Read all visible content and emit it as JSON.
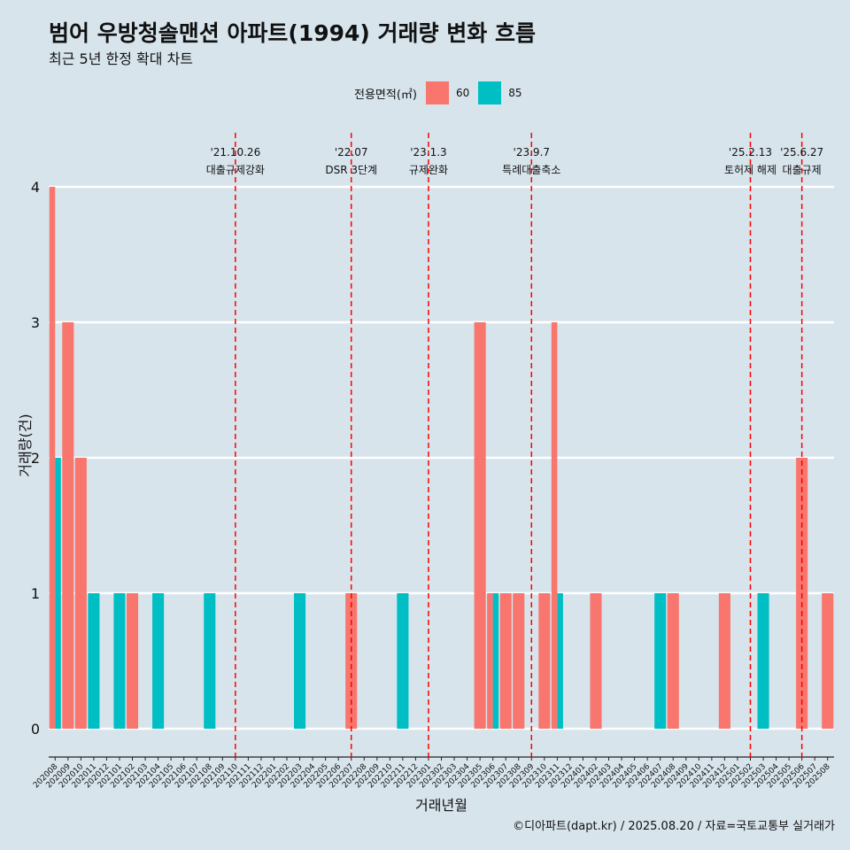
{
  "title": "범어 우방청솔맨션 아파트(1994) 거래량 변화 흐름",
  "subtitle": "최근 5년 한정 확대 차트",
  "credit": "©디아파트(dapt.kr) / 2025.08.20 / 자료=국토교통부 실거래가",
  "legend": {
    "title": "전용면적(㎡)",
    "items": [
      {
        "label": "60",
        "color": "#f8766d"
      },
      {
        "label": "85",
        "color": "#00bfc4"
      }
    ]
  },
  "chart_data": {
    "type": "bar",
    "xlabel": "거래년월",
    "ylabel": "거래량(건)",
    "ylim": [
      0,
      4
    ],
    "yticks": [
      0,
      1,
      2,
      3,
      4
    ],
    "categories": [
      "202008",
      "202009",
      "202010",
      "202011",
      "202012",
      "202101",
      "202102",
      "202103",
      "202104",
      "202105",
      "202106",
      "202107",
      "202108",
      "202109",
      "202110",
      "202111",
      "202112",
      "202201",
      "202202",
      "202203",
      "202204",
      "202205",
      "202206",
      "202207",
      "202208",
      "202209",
      "202210",
      "202211",
      "202212",
      "202301",
      "202302",
      "202303",
      "202304",
      "202305",
      "202306",
      "202307",
      "202308",
      "202309",
      "202310",
      "202311",
      "202312",
      "202401",
      "202402",
      "202403",
      "202404",
      "202405",
      "202406",
      "202407",
      "202408",
      "202409",
      "202410",
      "202411",
      "202412",
      "202501",
      "202502",
      "202503",
      "202504",
      "202505",
      "202506",
      "202507",
      "202508"
    ],
    "series": [
      {
        "name": "60",
        "color": "#f8766d",
        "values": [
          4,
          3,
          2,
          0,
          0,
          0,
          1,
          0,
          0,
          0,
          0,
          0,
          0,
          0,
          0,
          0,
          0,
          0,
          0,
          0,
          0,
          0,
          0,
          1,
          0,
          0,
          0,
          0,
          0,
          0,
          0,
          0,
          0,
          3,
          1,
          1,
          1,
          0,
          1,
          3,
          0,
          0,
          1,
          0,
          0,
          0,
          0,
          0,
          1,
          0,
          0,
          0,
          1,
          0,
          0,
          0,
          0,
          0,
          2,
          0,
          1
        ]
      },
      {
        "name": "85",
        "color": "#00bfc4",
        "values": [
          2,
          0,
          0,
          1,
          0,
          1,
          0,
          0,
          1,
          0,
          0,
          0,
          1,
          0,
          0,
          0,
          0,
          0,
          0,
          1,
          0,
          0,
          0,
          0,
          0,
          0,
          0,
          1,
          0,
          0,
          0,
          0,
          0,
          0,
          1,
          0,
          0,
          0,
          0,
          1,
          0,
          0,
          0,
          0,
          0,
          0,
          0,
          1,
          0,
          0,
          0,
          0,
          0,
          0,
          0,
          1,
          0,
          0,
          0,
          0,
          0
        ]
      }
    ],
    "events": [
      {
        "date": "'21.10.26",
        "label": "대출규제강화",
        "month": "202110"
      },
      {
        "date": "'22.07",
        "label": "DSR 3단계",
        "month": "202207"
      },
      {
        "date": "'23.1.3",
        "label": "규제완화",
        "month": "202301"
      },
      {
        "date": "'23.9.7",
        "label": "특례대출축소",
        "month": "202309"
      },
      {
        "date": "'25.2.13",
        "label": "토허제 해제",
        "month": "202502"
      },
      {
        "date": "'25.6.27",
        "label": "대출규제",
        "month": "202506"
      }
    ],
    "grid": true,
    "legend_position": "top"
  }
}
